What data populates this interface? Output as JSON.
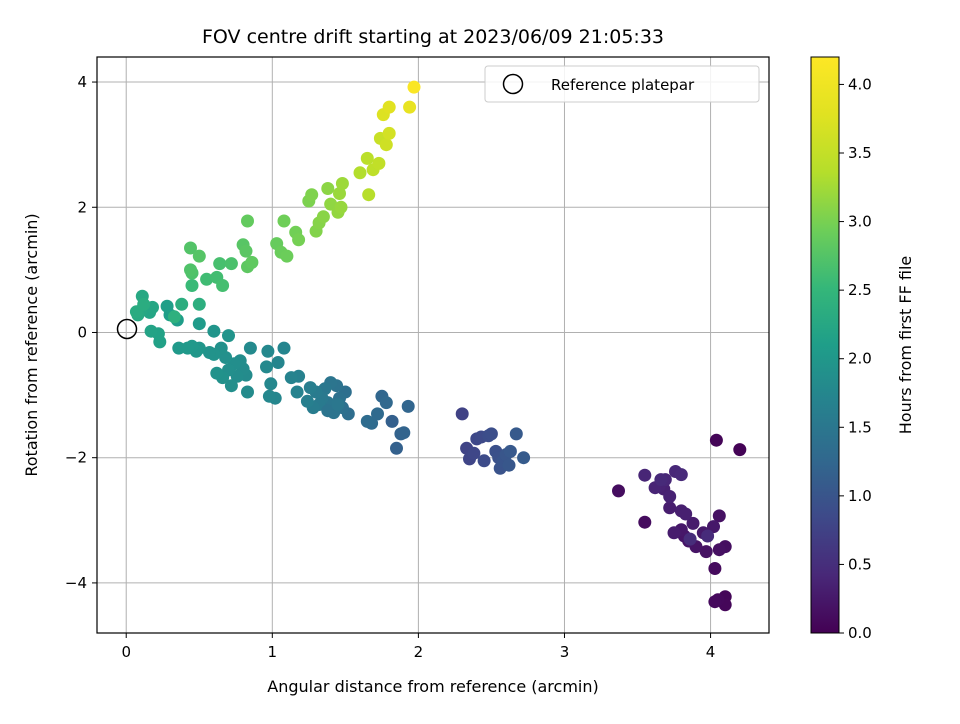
{
  "chart_data": {
    "type": "scatter",
    "title": "FOV centre drift starting at 2023/06/09 21:05:33",
    "xlabel": "Angular distance from reference (arcmin)",
    "ylabel": "Rotation from reference (arcmin)",
    "xlim": [
      -0.2,
      4.4
    ],
    "ylim": [
      -4.8,
      4.4
    ],
    "xticks": [
      0,
      1,
      2,
      3,
      4
    ],
    "yticks": [
      -4,
      -2,
      0,
      2,
      4
    ],
    "xtick_labels": [
      "0",
      "1",
      "2",
      "3",
      "4"
    ],
    "ytick_labels": [
      "−4",
      "−2",
      "0",
      "2",
      "4"
    ],
    "grid": true,
    "colormap": "viridis",
    "colorbar": {
      "label": "Hours from first FF file",
      "range": [
        0.0,
        4.2
      ],
      "ticks": [
        0.0,
        0.5,
        1.0,
        1.5,
        2.0,
        2.5,
        3.0,
        3.5,
        4.0
      ],
      "tick_labels": [
        "0.0",
        "0.5",
        "1.0",
        "1.5",
        "2.0",
        "2.5",
        "3.0",
        "3.5",
        "4.0"
      ]
    },
    "legend": {
      "position": "top-right",
      "entries": [
        "Reference platepar"
      ]
    },
    "reference_point": {
      "x": 0,
      "y": 0
    },
    "points": [
      [
        4.2,
        -1.87,
        0.02
      ],
      [
        4.04,
        -1.72,
        0.04
      ],
      [
        4.1,
        -4.22,
        0.05
      ],
      [
        4.1,
        -4.35,
        0.06
      ],
      [
        4.05,
        -4.27,
        0.08
      ],
      [
        4.03,
        -4.3,
        0.09
      ],
      [
        4.03,
        -3.77,
        0.1
      ],
      [
        3.55,
        -3.03,
        0.12
      ],
      [
        3.37,
        -2.53,
        0.13
      ],
      [
        4.1,
        -3.42,
        0.14
      ],
      [
        4.06,
        -3.47,
        0.16
      ],
      [
        4.06,
        -2.93,
        0.17
      ],
      [
        3.97,
        -3.5,
        0.18
      ],
      [
        3.9,
        -3.42,
        0.2
      ],
      [
        3.85,
        -3.33,
        0.21
      ],
      [
        3.82,
        -3.25,
        0.22
      ],
      [
        3.8,
        -3.15,
        0.24
      ],
      [
        4.02,
        -3.1,
        0.25
      ],
      [
        3.95,
        -3.2,
        0.26
      ],
      [
        3.88,
        -3.05,
        0.28
      ],
      [
        3.75,
        -3.2,
        0.29
      ],
      [
        3.72,
        -2.8,
        0.3
      ],
      [
        3.8,
        -2.85,
        0.32
      ],
      [
        3.83,
        -2.9,
        0.33
      ],
      [
        3.68,
        -2.5,
        0.34
      ],
      [
        3.72,
        -2.62,
        0.36
      ],
      [
        3.65,
        -2.45,
        0.37
      ],
      [
        3.62,
        -2.48,
        0.38
      ],
      [
        3.55,
        -2.28,
        0.4
      ],
      [
        3.69,
        -2.35,
        0.41
      ],
      [
        3.76,
        -2.22,
        0.42
      ],
      [
        3.8,
        -2.27,
        0.44
      ],
      [
        3.66,
        -2.35,
        0.45
      ],
      [
        3.98,
        -3.25,
        0.46
      ],
      [
        3.86,
        -3.3,
        0.48
      ],
      [
        2.3,
        -1.3,
        0.75
      ],
      [
        2.33,
        -1.85,
        0.77
      ],
      [
        2.35,
        -2.02,
        0.79
      ],
      [
        2.38,
        -1.93,
        0.81
      ],
      [
        2.4,
        -1.7,
        0.83
      ],
      [
        2.43,
        -1.67,
        0.85
      ],
      [
        2.45,
        -2.05,
        0.87
      ],
      [
        2.48,
        -1.65,
        0.89
      ],
      [
        2.5,
        -1.62,
        0.91
      ],
      [
        2.53,
        -1.9,
        0.93
      ],
      [
        2.55,
        -2.0,
        0.95
      ],
      [
        2.56,
        -2.17,
        0.97
      ],
      [
        2.58,
        -2.05,
        0.99
      ],
      [
        2.6,
        -1.95,
        1.01
      ],
      [
        2.62,
        -2.12,
        1.03
      ],
      [
        2.63,
        -1.9,
        1.05
      ],
      [
        2.67,
        -1.62,
        1.07
      ],
      [
        2.72,
        -2.0,
        1.09
      ],
      [
        1.82,
        -1.42,
        1.15
      ],
      [
        1.85,
        -1.85,
        1.17
      ],
      [
        1.88,
        -1.62,
        1.19
      ],
      [
        1.9,
        -1.6,
        1.21
      ],
      [
        1.93,
        -1.18,
        1.23
      ],
      [
        1.75,
        -1.02,
        1.25
      ],
      [
        1.78,
        -1.12,
        1.27
      ],
      [
        1.72,
        -1.3,
        1.29
      ],
      [
        1.68,
        -1.45,
        1.31
      ],
      [
        1.65,
        -1.42,
        1.33
      ],
      [
        1.52,
        -1.3,
        1.35
      ],
      [
        1.5,
        -0.95,
        1.37
      ],
      [
        1.48,
        -1.2,
        1.39
      ],
      [
        1.46,
        -1.05,
        1.41
      ],
      [
        1.44,
        -0.85,
        1.43
      ],
      [
        1.42,
        -1.28,
        1.45
      ],
      [
        1.4,
        -0.8,
        1.47
      ],
      [
        1.38,
        -1.12,
        1.49
      ],
      [
        1.36,
        -0.9,
        1.51
      ],
      [
        1.34,
        -1.05,
        1.53
      ],
      [
        1.32,
        -1.15,
        1.55
      ],
      [
        1.3,
        -0.95,
        1.57
      ],
      [
        1.28,
        -1.2,
        1.59
      ],
      [
        1.26,
        -0.88,
        1.61
      ],
      [
        1.24,
        -1.1,
        1.63
      ],
      [
        1.38,
        -1.25,
        1.45
      ],
      [
        1.45,
        -1.15,
        1.5
      ],
      [
        1.18,
        -0.7,
        1.66
      ],
      [
        1.17,
        -0.95,
        1.68
      ],
      [
        1.13,
        -0.72,
        1.7
      ],
      [
        1.08,
        -0.25,
        1.72
      ],
      [
        1.04,
        -0.48,
        1.73
      ],
      [
        1.02,
        -1.05,
        1.74
      ],
      [
        0.98,
        -1.02,
        1.75
      ],
      [
        0.99,
        -0.82,
        1.76
      ],
      [
        0.97,
        -0.3,
        1.77
      ],
      [
        0.96,
        -0.55,
        1.78
      ],
      [
        0.85,
        -0.25,
        1.8
      ],
      [
        0.83,
        -0.95,
        1.81
      ],
      [
        0.82,
        -0.68,
        1.82
      ],
      [
        0.8,
        -0.58,
        1.83
      ],
      [
        0.78,
        -0.45,
        1.84
      ],
      [
        0.76,
        -0.7,
        1.85
      ],
      [
        0.74,
        -0.5,
        1.86
      ],
      [
        0.72,
        -0.85,
        1.87
      ],
      [
        0.7,
        -0.6,
        1.88
      ],
      [
        0.68,
        -0.4,
        1.89
      ],
      [
        0.66,
        -0.72,
        1.9
      ],
      [
        0.65,
        -0.25,
        1.91
      ],
      [
        0.62,
        -0.65,
        1.92
      ],
      [
        0.6,
        -0.35,
        1.93
      ],
      [
        0.57,
        -0.32,
        1.94
      ],
      [
        0.7,
        -0.05,
        1.95
      ],
      [
        0.6,
        0.02,
        1.97
      ],
      [
        0.5,
        -0.25,
        1.98
      ],
      [
        0.48,
        -0.3,
        2.0
      ],
      [
        0.45,
        -0.22,
        2.01
      ],
      [
        0.42,
        -0.25,
        2.02
      ],
      [
        0.36,
        -0.25,
        2.03
      ],
      [
        0.5,
        0.14,
        2.05
      ],
      [
        0.35,
        0.2,
        2.08
      ],
      [
        0.3,
        0.28,
        2.1
      ],
      [
        0.28,
        0.42,
        2.12
      ],
      [
        0.23,
        -0.15,
        2.15
      ],
      [
        0.22,
        -0.02,
        2.17
      ],
      [
        0.17,
        0.02,
        2.19
      ],
      [
        0.16,
        0.32,
        2.21
      ],
      [
        0.18,
        0.4,
        2.23
      ],
      [
        0.1,
        0.35,
        2.25
      ],
      [
        0.11,
        0.58,
        2.27
      ],
      [
        0.08,
        0.28,
        2.29
      ],
      [
        0.07,
        0.33,
        2.31
      ],
      [
        0.12,
        0.45,
        2.33
      ],
      [
        0.38,
        0.45,
        2.35
      ],
      [
        0.5,
        0.45,
        2.37
      ],
      [
        0.33,
        0.25,
        2.4
      ],
      [
        0.45,
        0.75,
        2.55
      ],
      [
        0.55,
        0.85,
        2.6
      ],
      [
        0.62,
        0.88,
        2.62
      ],
      [
        0.66,
        0.75,
        2.64
      ],
      [
        0.64,
        1.1,
        2.66
      ],
      [
        0.72,
        1.1,
        2.68
      ],
      [
        0.45,
        0.95,
        2.7
      ],
      [
        0.44,
        1.0,
        2.72
      ],
      [
        0.44,
        1.35,
        2.74
      ],
      [
        0.5,
        1.22,
        2.76
      ],
      [
        0.8,
        1.4,
        2.78
      ],
      [
        0.82,
        1.3,
        2.8
      ],
      [
        0.83,
        1.05,
        2.82
      ],
      [
        0.86,
        1.12,
        2.84
      ],
      [
        0.83,
        1.78,
        2.86
      ],
      [
        1.03,
        1.42,
        2.88
      ],
      [
        1.06,
        1.28,
        2.9
      ],
      [
        1.1,
        1.22,
        2.92
      ],
      [
        1.08,
        1.78,
        2.94
      ],
      [
        1.16,
        1.6,
        2.96
      ],
      [
        1.18,
        1.48,
        2.98
      ],
      [
        1.25,
        2.1,
        3.02
      ],
      [
        1.27,
        2.2,
        3.04
      ],
      [
        1.3,
        1.62,
        3.06
      ],
      [
        1.32,
        1.75,
        3.08
      ],
      [
        1.35,
        1.85,
        3.1
      ],
      [
        1.38,
        2.3,
        3.12
      ],
      [
        1.4,
        2.05,
        3.14
      ],
      [
        1.45,
        1.92,
        3.16
      ],
      [
        1.47,
        2.0,
        3.18
      ],
      [
        1.46,
        2.22,
        3.2
      ],
      [
        1.48,
        2.38,
        3.22
      ],
      [
        1.6,
        2.55,
        3.35
      ],
      [
        1.66,
        2.2,
        3.38
      ],
      [
        1.65,
        2.78,
        3.42
      ],
      [
        1.69,
        2.6,
        3.45
      ],
      [
        1.73,
        2.7,
        3.48
      ],
      [
        1.74,
        3.1,
        3.55
      ],
      [
        1.78,
        3.0,
        3.6
      ],
      [
        1.8,
        3.18,
        3.65
      ],
      [
        1.76,
        3.48,
        3.75
      ],
      [
        1.8,
        3.6,
        3.8
      ],
      [
        1.94,
        3.6,
        3.9
      ],
      [
        1.97,
        3.92,
        4.15
      ]
    ]
  }
}
